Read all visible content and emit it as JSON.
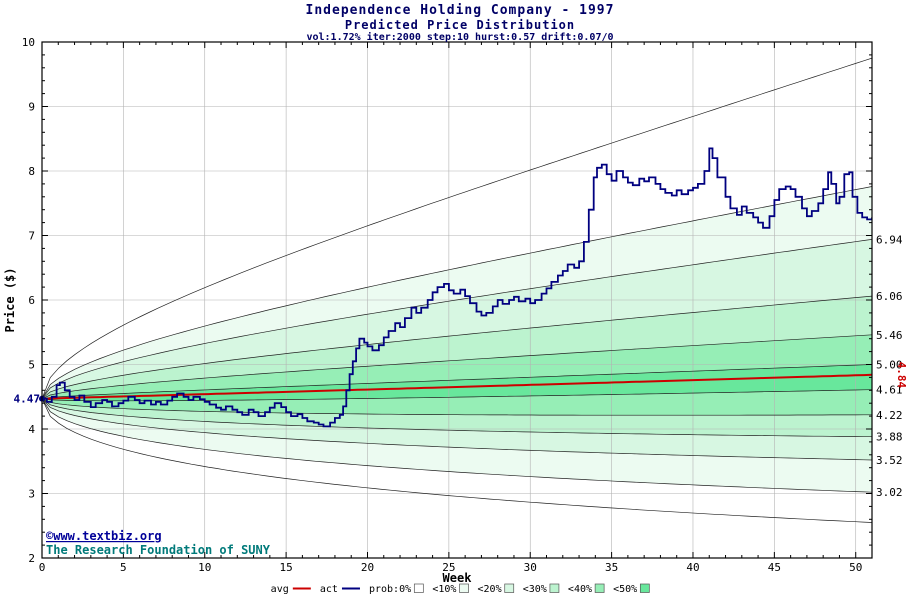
{
  "chart_data": {
    "type": "fan-line",
    "title": "Independence Holding Company - 1997",
    "subtitle": "Predicted Price Distribution",
    "params": "vol:1.72% iter:2000 step:10 hurst:0.57 drift:0.07/0",
    "xlabel": "Week",
    "ylabel": "Price ($)",
    "xlim": [
      0,
      51
    ],
    "ylim": [
      2,
      10
    ],
    "x_ticks": [
      0,
      5,
      10,
      15,
      20,
      25,
      30,
      35,
      40,
      45,
      50
    ],
    "y_ticks": [
      2,
      3,
      4,
      5,
      6,
      7,
      8,
      9,
      10
    ],
    "x_minor_step": 1,
    "y_minor_step": 0.2,
    "grid": true,
    "start_price": 4.47,
    "start_label": "4.47",
    "start_label_color": "#000080",
    "avg_line": {
      "legend_label": "avg",
      "color": "#cc0000",
      "start": 4.47,
      "end": 4.84,
      "end_label": "4.84"
    },
    "fan_bands": [
      {
        "label": "<50%",
        "color": "#68e79c",
        "upper_end": 5.0,
        "lower_end": 4.61
      },
      {
        "label": "<40%",
        "color": "#96eeb6",
        "upper_end": 5.46,
        "lower_end": 4.22
      },
      {
        "label": "<30%",
        "color": "#bcf3cf",
        "upper_end": 6.06,
        "lower_end": 3.88
      },
      {
        "label": "<20%",
        "color": "#d7f7e2",
        "upper_end": 6.94,
        "lower_end": 3.52
      },
      {
        "label": "<10%",
        "color": "#ecfbf1",
        "upper_end": 7.76,
        "lower_end": 3.02
      },
      {
        "label": "prob:0%",
        "color": "#ffffff",
        "upper_end": 9.75,
        "lower_end": 2.55
      }
    ],
    "right_edge_labels": [
      "6.94",
      "6.06",
      "5.46",
      "5.00",
      "4.61",
      "4.22",
      "3.88",
      "3.52",
      "3.02"
    ],
    "actual_line": {
      "legend_label": "act",
      "color": "#000080",
      "points": [
        [
          0,
          4.47
        ],
        [
          0.3,
          4.42
        ],
        [
          0.6,
          4.5
        ],
        [
          0.9,
          4.68
        ],
        [
          1.1,
          4.72
        ],
        [
          1.4,
          4.6
        ],
        [
          1.7,
          4.5
        ],
        [
          2,
          4.45
        ],
        [
          2.3,
          4.52
        ],
        [
          2.6,
          4.42
        ],
        [
          3,
          4.34
        ],
        [
          3.3,
          4.4
        ],
        [
          3.7,
          4.45
        ],
        [
          4,
          4.42
        ],
        [
          4.3,
          4.35
        ],
        [
          4.7,
          4.4
        ],
        [
          5,
          4.44
        ],
        [
          5.3,
          4.5
        ],
        [
          5.7,
          4.45
        ],
        [
          6,
          4.4
        ],
        [
          6.3,
          4.44
        ],
        [
          6.7,
          4.38
        ],
        [
          7,
          4.42
        ],
        [
          7.3,
          4.38
        ],
        [
          7.7,
          4.44
        ],
        [
          8,
          4.5
        ],
        [
          8.3,
          4.55
        ],
        [
          8.7,
          4.5
        ],
        [
          9,
          4.45
        ],
        [
          9.3,
          4.5
        ],
        [
          9.7,
          4.46
        ],
        [
          10,
          4.42
        ],
        [
          10.3,
          4.38
        ],
        [
          10.7,
          4.33
        ],
        [
          11,
          4.3
        ],
        [
          11.3,
          4.35
        ],
        [
          11.7,
          4.3
        ],
        [
          12,
          4.26
        ],
        [
          12.3,
          4.22
        ],
        [
          12.7,
          4.3
        ],
        [
          13,
          4.26
        ],
        [
          13.3,
          4.2
        ],
        [
          13.7,
          4.26
        ],
        [
          14,
          4.33
        ],
        [
          14.3,
          4.4
        ],
        [
          14.7,
          4.34
        ],
        [
          15,
          4.26
        ],
        [
          15.3,
          4.2
        ],
        [
          15.7,
          4.23
        ],
        [
          16,
          4.17
        ],
        [
          16.3,
          4.12
        ],
        [
          16.7,
          4.1
        ],
        [
          17,
          4.07
        ],
        [
          17.3,
          4.04
        ],
        [
          17.7,
          4.1
        ],
        [
          18,
          4.17
        ],
        [
          18.3,
          4.22
        ],
        [
          18.5,
          4.35
        ],
        [
          18.7,
          4.6
        ],
        [
          18.9,
          4.85
        ],
        [
          19.1,
          5.05
        ],
        [
          19.3,
          5.25
        ],
        [
          19.5,
          5.4
        ],
        [
          19.8,
          5.34
        ],
        [
          20,
          5.28
        ],
        [
          20.3,
          5.22
        ],
        [
          20.7,
          5.3
        ],
        [
          21,
          5.42
        ],
        [
          21.3,
          5.52
        ],
        [
          21.7,
          5.64
        ],
        [
          22,
          5.58
        ],
        [
          22.3,
          5.72
        ],
        [
          22.7,
          5.88
        ],
        [
          23,
          5.8
        ],
        [
          23.3,
          5.88
        ],
        [
          23.7,
          6.0
        ],
        [
          24,
          6.12
        ],
        [
          24.3,
          6.2
        ],
        [
          24.7,
          6.25
        ],
        [
          25,
          6.15
        ],
        [
          25.3,
          6.1
        ],
        [
          25.7,
          6.16
        ],
        [
          26,
          6.06
        ],
        [
          26.3,
          5.95
        ],
        [
          26.7,
          5.82
        ],
        [
          27,
          5.76
        ],
        [
          27.3,
          5.8
        ],
        [
          27.7,
          5.9
        ],
        [
          28,
          6.0
        ],
        [
          28.3,
          5.94
        ],
        [
          28.7,
          6.0
        ],
        [
          29,
          6.05
        ],
        [
          29.3,
          5.98
        ],
        [
          29.7,
          6.02
        ],
        [
          30,
          5.95
        ],
        [
          30.3,
          6.0
        ],
        [
          30.7,
          6.1
        ],
        [
          31,
          6.18
        ],
        [
          31.3,
          6.28
        ],
        [
          31.7,
          6.38
        ],
        [
          32,
          6.45
        ],
        [
          32.3,
          6.55
        ],
        [
          32.7,
          6.5
        ],
        [
          33,
          6.6
        ],
        [
          33.3,
          6.9
        ],
        [
          33.6,
          7.4
        ],
        [
          33.9,
          7.9
        ],
        [
          34.1,
          8.05
        ],
        [
          34.4,
          8.1
        ],
        [
          34.7,
          7.95
        ],
        [
          35,
          7.85
        ],
        [
          35.3,
          8.0
        ],
        [
          35.7,
          7.9
        ],
        [
          36,
          7.82
        ],
        [
          36.3,
          7.78
        ],
        [
          36.7,
          7.88
        ],
        [
          37,
          7.84
        ],
        [
          37.3,
          7.9
        ],
        [
          37.7,
          7.8
        ],
        [
          38,
          7.72
        ],
        [
          38.3,
          7.66
        ],
        [
          38.7,
          7.62
        ],
        [
          39,
          7.7
        ],
        [
          39.3,
          7.64
        ],
        [
          39.7,
          7.7
        ],
        [
          40,
          7.74
        ],
        [
          40.3,
          7.8
        ],
        [
          40.7,
          8.0
        ],
        [
          41,
          8.35
        ],
        [
          41.2,
          8.2
        ],
        [
          41.5,
          7.9
        ],
        [
          42,
          7.6
        ],
        [
          42.3,
          7.42
        ],
        [
          42.7,
          7.32
        ],
        [
          43,
          7.45
        ],
        [
          43.3,
          7.35
        ],
        [
          43.7,
          7.28
        ],
        [
          44,
          7.2
        ],
        [
          44.3,
          7.12
        ],
        [
          44.7,
          7.3
        ],
        [
          45,
          7.55
        ],
        [
          45.3,
          7.72
        ],
        [
          45.7,
          7.76
        ],
        [
          46,
          7.72
        ],
        [
          46.3,
          7.6
        ],
        [
          46.7,
          7.42
        ],
        [
          47,
          7.3
        ],
        [
          47.3,
          7.38
        ],
        [
          47.7,
          7.5
        ],
        [
          48,
          7.72
        ],
        [
          48.3,
          7.98
        ],
        [
          48.5,
          7.8
        ],
        [
          48.8,
          7.5
        ],
        [
          49,
          7.6
        ],
        [
          49.3,
          7.95
        ],
        [
          49.6,
          7.98
        ],
        [
          49.8,
          7.6
        ],
        [
          50.1,
          7.35
        ],
        [
          50.4,
          7.28
        ],
        [
          50.7,
          7.25
        ],
        [
          51,
          7.28
        ]
      ]
    },
    "watermark_line1": "©www.textbiz.org",
    "watermark_line2": "The Research Foundation of SUNY",
    "watermark_color1": "#000099",
    "watermark_color2": "#007a7a",
    "legend": [
      {
        "label": "avg",
        "type": "line",
        "color": "#cc0000"
      },
      {
        "label": "act",
        "type": "line",
        "color": "#000080"
      },
      {
        "label": "prob:0%",
        "type": "box",
        "color": "#ffffff"
      },
      {
        "label": "<10%",
        "type": "box",
        "color": "#ecfbf1"
      },
      {
        "label": "<20%",
        "type": "box",
        "color": "#d7f7e2"
      },
      {
        "label": "<30%",
        "type": "box",
        "color": "#bcf3cf"
      },
      {
        "label": "<40%",
        "type": "box",
        "color": "#96eeb6"
      },
      {
        "label": "<50%",
        "type": "box",
        "color": "#68e79c"
      }
    ]
  }
}
